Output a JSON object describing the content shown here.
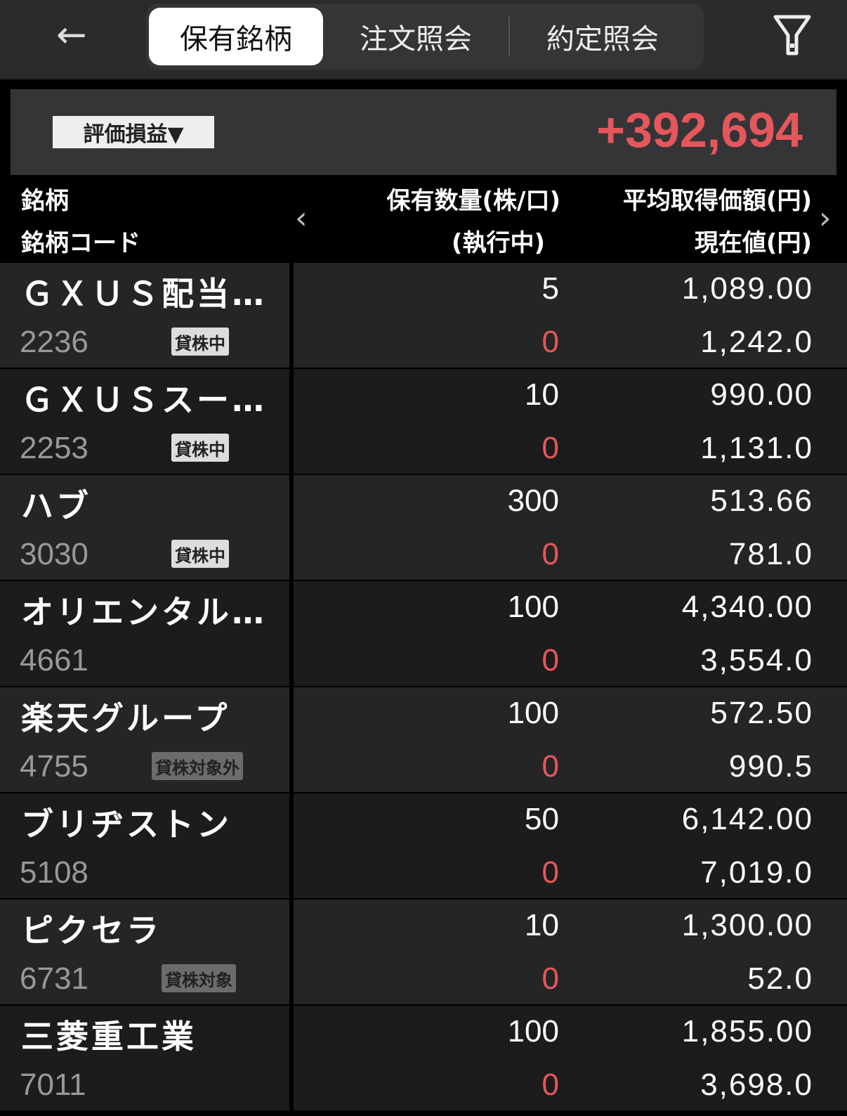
{
  "nav": {
    "back_icon": "arrow-left-icon",
    "filter_icon": "filter-icon",
    "tabs": [
      {
        "label": "保有銘柄",
        "active": true
      },
      {
        "label": "注文照会",
        "active": false
      },
      {
        "label": "約定照会",
        "active": false
      }
    ]
  },
  "summary": {
    "selector_label": "評価損益▼",
    "value": "+392,694",
    "value_color": "#e5575b"
  },
  "columns": {
    "name": "銘柄",
    "code": "銘柄コード",
    "qty": "保有数量(株/口)",
    "exec": "(執行中)",
    "avg": "平均取得価額(円)",
    "cur": "現在値(円)"
  },
  "holdings": [
    {
      "name": "ＧＸＵＳ配当…",
      "code": "2236",
      "badge": "貸株中",
      "badge_type": "on",
      "qty": "5",
      "exec": "0",
      "avg": "1,089.00",
      "cur": "1,242.0"
    },
    {
      "name": "ＧＸＵＳスー…",
      "code": "2253",
      "badge": "貸株中",
      "badge_type": "on",
      "qty": "10",
      "exec": "0",
      "avg": "990.00",
      "cur": "1,131.0"
    },
    {
      "name": "ハブ",
      "code": "3030",
      "badge": "貸株中",
      "badge_type": "on",
      "qty": "300",
      "exec": "0",
      "avg": "513.66",
      "cur": "781.0"
    },
    {
      "name": "オリエンタル…",
      "code": "4661",
      "badge": "",
      "badge_type": "",
      "qty": "100",
      "exec": "0",
      "avg": "4,340.00",
      "cur": "3,554.0"
    },
    {
      "name": "楽天グループ",
      "code": "4755",
      "badge": "貸株対象外",
      "badge_type": "off",
      "qty": "100",
      "exec": "0",
      "avg": "572.50",
      "cur": "990.5"
    },
    {
      "name": "ブリヂストン",
      "code": "5108",
      "badge": "",
      "badge_type": "",
      "qty": "50",
      "exec": "0",
      "avg": "6,142.00",
      "cur": "7,019.0"
    },
    {
      "name": "ピクセラ",
      "code": "6731",
      "badge": "貸株対象",
      "badge_type": "off",
      "qty": "10",
      "exec": "0",
      "avg": "1,300.00",
      "cur": "52.0"
    },
    {
      "name": "三菱重工業",
      "code": "7011",
      "badge": "",
      "badge_type": "",
      "qty": "100",
      "exec": "0",
      "avg": "1,855.00",
      "cur": "3,698.0"
    }
  ]
}
